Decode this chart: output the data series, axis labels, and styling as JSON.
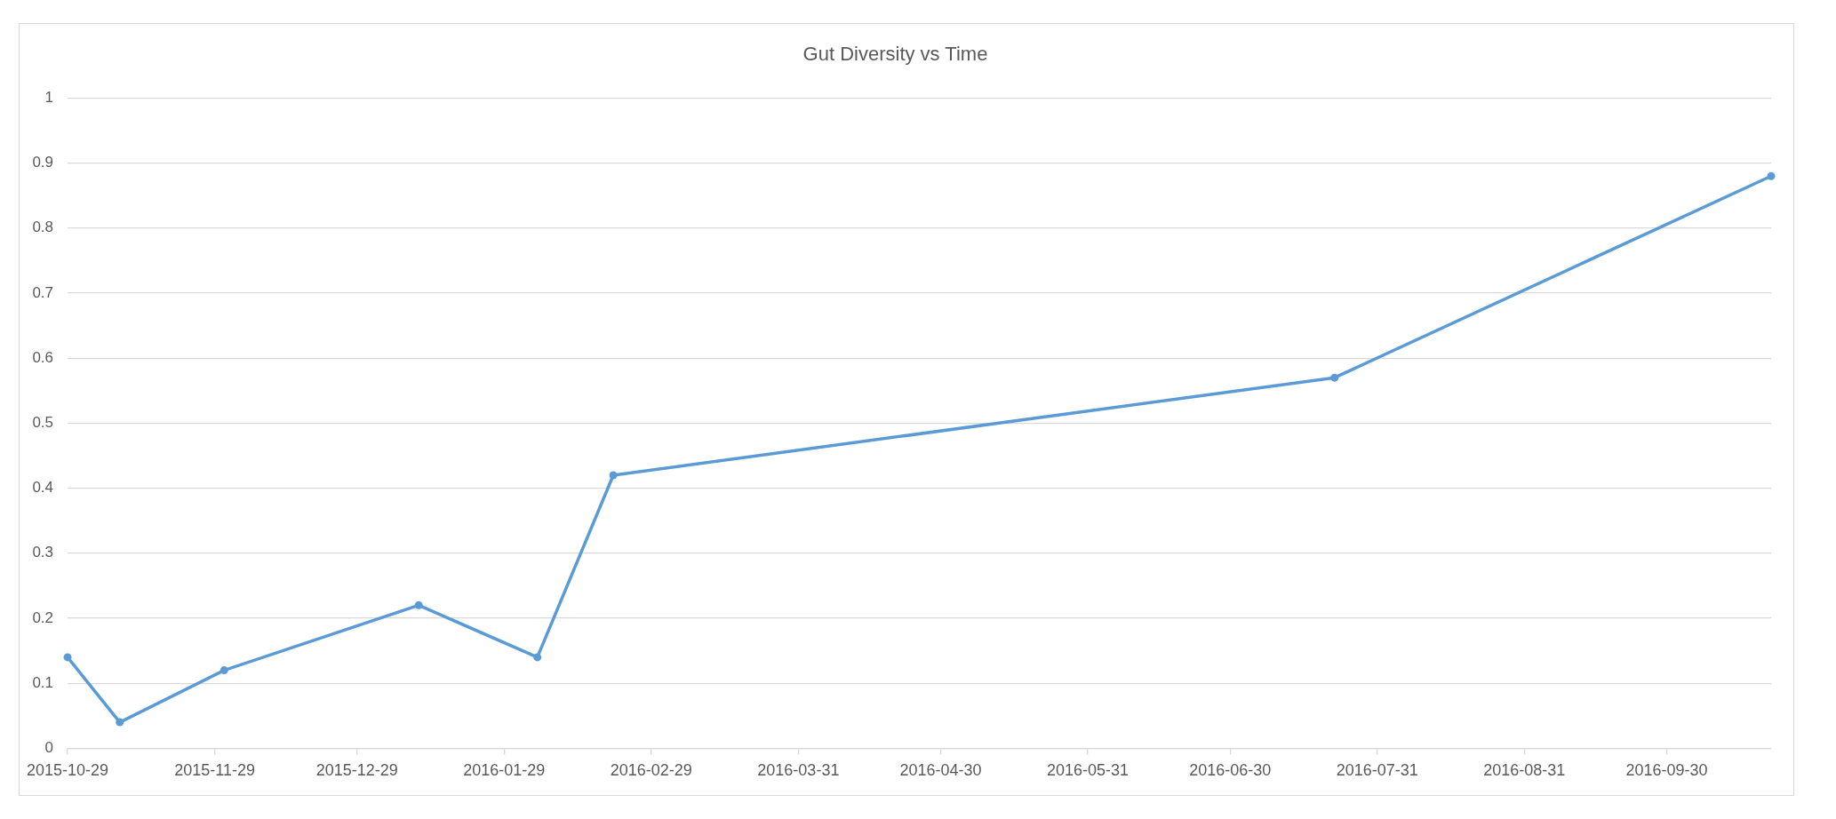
{
  "chart_data": {
    "type": "line",
    "title": "Gut Diversity vs Time",
    "x": [
      "2015-10-29",
      "2015-11-09",
      "2015-12-01",
      "2016-01-11",
      "2016-02-05",
      "2016-02-21",
      "2016-07-22",
      "2016-10-22"
    ],
    "values": [
      0.14,
      0.04,
      0.12,
      0.22,
      0.14,
      0.42,
      0.57,
      0.88
    ],
    "color": "#5b9bd5",
    "xlim": [
      "2015-10-29",
      "2016-10-22"
    ],
    "xticks": [
      "2015-10-29",
      "2015-11-29",
      "2015-12-29",
      "2016-01-29",
      "2016-02-29",
      "2016-03-31",
      "2016-04-30",
      "2016-05-31",
      "2016-06-30",
      "2016-07-31",
      "2016-08-31",
      "2016-09-30"
    ],
    "ylim": [
      0,
      1
    ],
    "yticks": [
      0,
      0.1,
      0.2,
      0.3,
      0.4,
      0.5,
      0.6,
      0.7,
      0.8,
      0.9,
      1
    ],
    "grid": "y",
    "marker": "circle",
    "line_style": "solid"
  }
}
